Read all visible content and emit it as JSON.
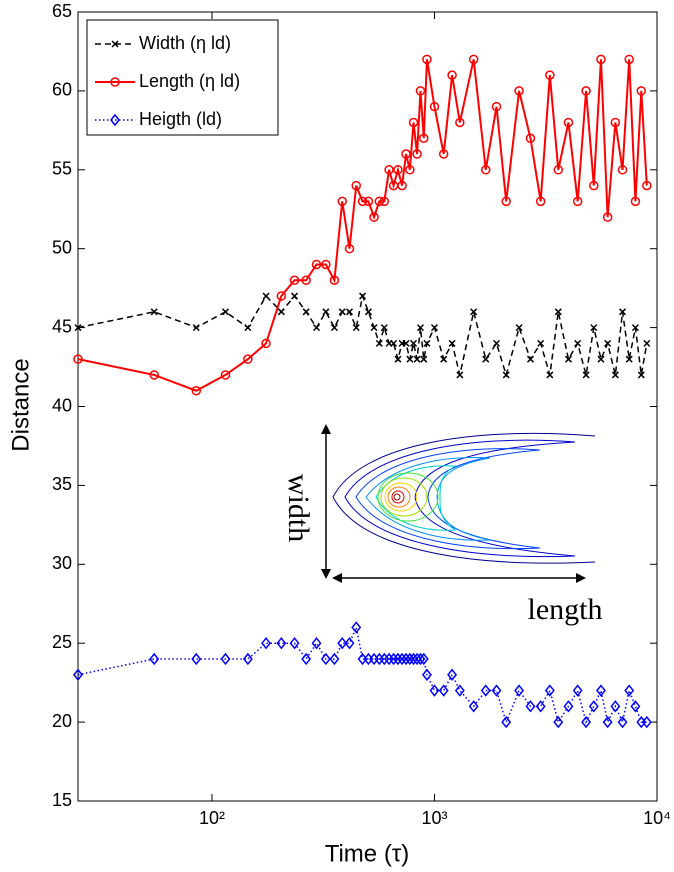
{
  "chart_data": {
    "type": "line",
    "x_label": "Time (τ)",
    "y_label": "Distance",
    "x": [
      25,
      55,
      85,
      115,
      145,
      175,
      205,
      235,
      265,
      295,
      325,
      355,
      385,
      415,
      445,
      475,
      505,
      535,
      565,
      595,
      625,
      655,
      685,
      715,
      745,
      775,
      805,
      835,
      865,
      895,
      925,
      1000,
      1100,
      1200,
      1300,
      1500,
      1700,
      1900,
      2100,
      2400,
      2700,
      3000,
      3300,
      3600,
      4000,
      4400,
      4800,
      5200,
      5600,
      6000,
      6500,
      7000,
      7500,
      8000,
      8500,
      9000
    ],
    "series": [
      {
        "name": "Width (η ld)",
        "color": "#000000",
        "marker": "x",
        "dash": "dashed",
        "values": [
          45,
          46,
          45,
          46,
          45,
          47,
          46,
          47,
          46,
          45,
          46,
          45,
          46,
          46,
          45,
          47,
          46,
          45,
          44,
          45,
          44,
          44,
          43,
          44,
          44,
          43,
          44,
          43,
          45,
          43,
          44,
          45,
          43,
          44,
          42,
          46,
          43,
          44,
          42,
          45,
          43,
          44,
          42,
          46,
          43,
          44,
          42,
          45,
          43,
          44,
          42,
          46,
          43,
          45,
          42,
          44
        ]
      },
      {
        "name": "Length (η ld)",
        "color": "#ff0000",
        "marker": "circle",
        "dash": "solid",
        "values": [
          43,
          42,
          41,
          42,
          43,
          44,
          47,
          48,
          48,
          49,
          49,
          48,
          53,
          50,
          54,
          53,
          53,
          52,
          53,
          53,
          55,
          54,
          55,
          54,
          56,
          55,
          58,
          56,
          60,
          57,
          62,
          59,
          56,
          61,
          58,
          62,
          55,
          59,
          53,
          60,
          57,
          53,
          61,
          55,
          58,
          53,
          60,
          54,
          62,
          52,
          58,
          55,
          62,
          53,
          60,
          54
        ]
      },
      {
        "name": "Heigth (ld)",
        "color": "#0000ff",
        "marker": "diamond",
        "dash": "dotted",
        "values": [
          23,
          24,
          24,
          24,
          24,
          25,
          25,
          25,
          24,
          25,
          24,
          24,
          25,
          25,
          26,
          24,
          24,
          24,
          24,
          24,
          24,
          24,
          24,
          24,
          24,
          24,
          24,
          24,
          24,
          24,
          23,
          22,
          22,
          23,
          22,
          21,
          22,
          22,
          20,
          22,
          21,
          21,
          22,
          20,
          21,
          22,
          20,
          21,
          22,
          20,
          21,
          20,
          22,
          21,
          20,
          20
        ]
      }
    ],
    "xscale": "log",
    "xlim": [
      25,
      10000
    ],
    "xticks": [
      {
        "value": 100,
        "label": "10²"
      },
      {
        "value": 1000,
        "label": "10³"
      },
      {
        "value": 10000,
        "label": "10⁴"
      }
    ],
    "ylim": [
      15,
      65
    ],
    "yticks": [
      15,
      20,
      25,
      30,
      35,
      40,
      45,
      50,
      55,
      60,
      65
    ],
    "legend": "upper left",
    "annotations": [
      "width",
      "length"
    ]
  }
}
